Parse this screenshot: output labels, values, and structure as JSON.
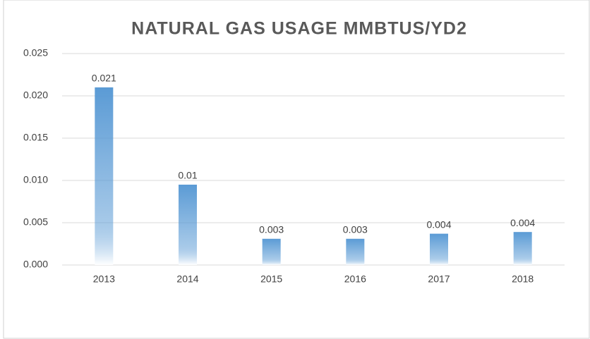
{
  "chart_data": {
    "type": "bar",
    "title": "NATURAL GAS USAGE MMBTUS/YD2",
    "categories": [
      "2013",
      "2014",
      "2015",
      "2016",
      "2017",
      "2018"
    ],
    "values": [
      0.021,
      0.0095,
      0.0031,
      0.0031,
      0.0037,
      0.0039
    ],
    "value_labels": [
      "0.021",
      "0.01",
      "0.003",
      "0.003",
      "0.004",
      "0.004"
    ],
    "color": "#5b9bd5",
    "ylim": [
      0,
      0.025
    ],
    "yticks": [
      {
        "value": 0,
        "label": "0.000"
      },
      {
        "value": 0.005,
        "label": "0.005"
      },
      {
        "value": 0.01,
        "label": "0.010"
      },
      0.015,
      {
        "value": 0.02,
        "label": "0.020"
      },
      0.025
    ],
    "grid": true
  }
}
